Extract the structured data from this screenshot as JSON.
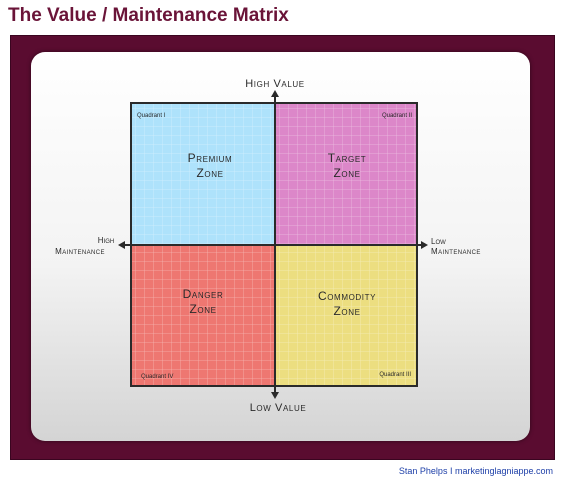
{
  "page": {
    "title": "The Value / Maintenance Matrix",
    "credit": "Stan Phelps I marketinglagniappe.com"
  },
  "axes": {
    "top": "High Value",
    "bottom": "Low Value",
    "left_line1": "High",
    "left_line2": "Maintenance",
    "right_line1": "Low",
    "right_line2": "Maintenance"
  },
  "quadrants": [
    {
      "id": "q1",
      "label": "Quadrant I",
      "zone_line1": "Premium",
      "zone_line2": "Zone",
      "color": "#aee2fb"
    },
    {
      "id": "q2",
      "label": "Quadrant II",
      "zone_line1": "Target",
      "zone_line2": "Zone",
      "color": "#dc87c9"
    },
    {
      "id": "q4",
      "label": "Quadrant IV",
      "zone_line1": "Danger",
      "zone_line2": "Zone",
      "color": "#ee7771"
    },
    {
      "id": "q3",
      "label": "Quadrant III",
      "zone_line1": "Commodity",
      "zone_line2": "Zone",
      "color": "#ecde80"
    }
  ]
}
